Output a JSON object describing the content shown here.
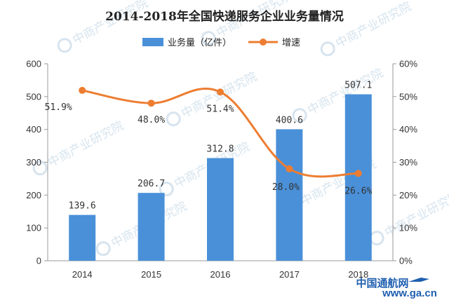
{
  "chart_data": {
    "type": "bar",
    "title": "2014-2018年全国快递服务企业业务量情况",
    "categories": [
      "2014",
      "2015",
      "2016",
      "2017",
      "2018"
    ],
    "series": [
      {
        "name": "业务量（亿件）",
        "type": "bar",
        "axis": "left",
        "values": [
          139.6,
          206.7,
          312.8,
          400.6,
          507.1
        ],
        "labels": [
          "139.6",
          "206.7",
          "312.8",
          "400.6",
          "507.1"
        ],
        "color": "#4a90d9"
      },
      {
        "name": "增速",
        "type": "line",
        "axis": "right",
        "values": [
          51.9,
          48.0,
          51.4,
          28.0,
          26.6
        ],
        "labels": [
          "51.9%",
          "48.0%",
          "51.4%",
          "28.0%",
          "26.6%"
        ],
        "color": "#ed7d31"
      }
    ],
    "y_left": {
      "ylim": [
        0,
        600
      ],
      "ticks": [
        "0",
        "100",
        "200",
        "300",
        "400",
        "500",
        "600"
      ]
    },
    "y_right": {
      "ylim": [
        0,
        60
      ],
      "ticks": [
        "0%",
        "10%",
        "20%",
        "30%",
        "40%",
        "50%",
        "60%"
      ]
    },
    "grid": false,
    "legend_position": "top-center"
  },
  "watermark": {
    "text": "中商产业研究院"
  },
  "brand": {
    "name": "中国通航网",
    "url": "www.ga.cn"
  }
}
